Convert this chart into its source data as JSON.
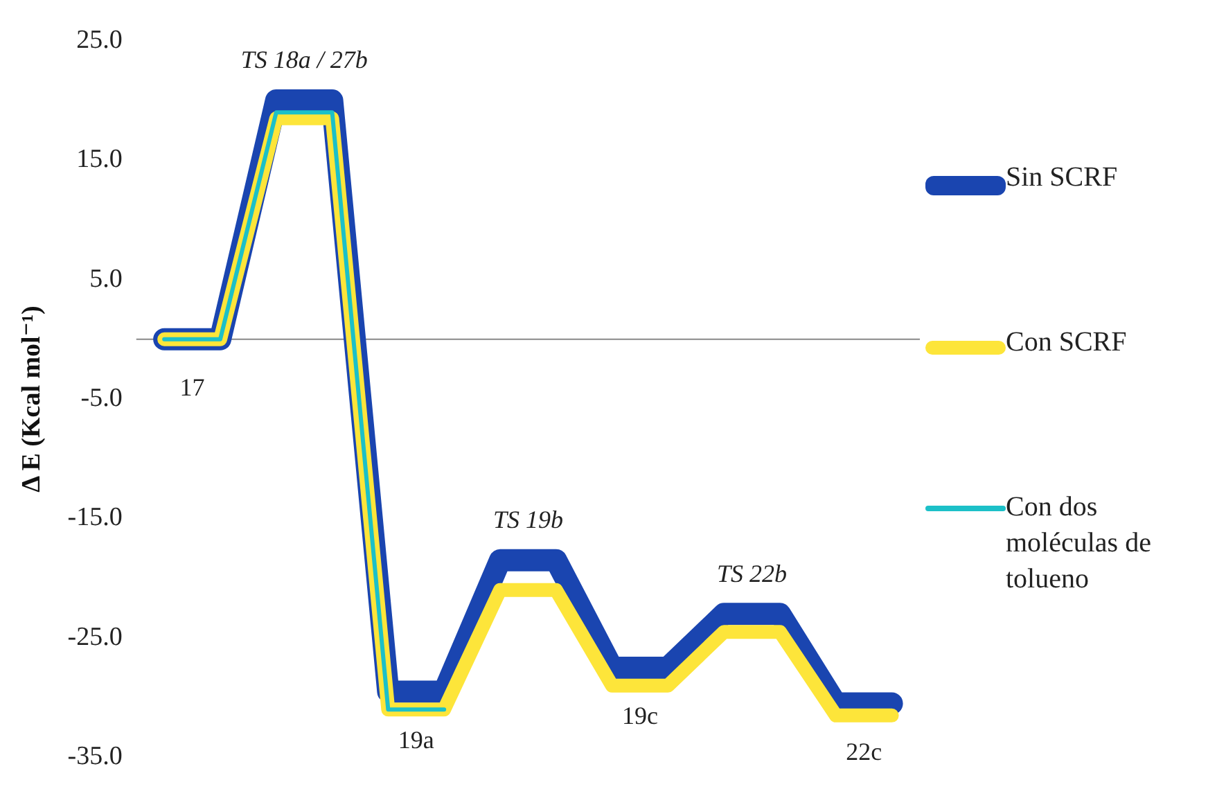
{
  "chart_data": {
    "type": "line",
    "ylabel": "Δ E (Kcal mol⁻¹)",
    "categories": [
      null,
      null,
      null,
      null,
      null,
      null,
      null,
      null,
      null,
      null,
      null,
      null,
      null,
      null
    ],
    "ylim": [
      -35,
      25
    ],
    "yticks": [
      {
        "value": 25,
        "label": "25.0"
      },
      {
        "value": 15,
        "label": "15.0"
      },
      {
        "value": 5,
        "label": "5.0"
      },
      {
        "value": -5,
        "label": "-5.0"
      },
      {
        "value": -15,
        "label": "-15.0"
      },
      {
        "value": -25,
        "label": "-25.0"
      },
      {
        "value": -35,
        "label": "-35.0"
      }
    ],
    "tick_labels": "y",
    "grid": false,
    "legend": "right",
    "marker": "none",
    "line_style": "solid",
    "series": [
      {
        "name": "Sin SCRF",
        "color": "#1a45b0",
        "values": [
          0,
          0,
          20,
          20,
          -29.5,
          -29.5,
          -18.5,
          -18.5,
          -27.5,
          -27.5,
          -23,
          -23,
          -30.5,
          -30.5
        ]
      },
      {
        "name": "Con SCRF",
        "color": "#fde53a",
        "values": [
          0,
          0,
          18.5,
          18.5,
          -31,
          -31,
          -21,
          -21,
          -29,
          -29,
          -24.5,
          -24.5,
          -31.5,
          -31.5
        ]
      },
      {
        "name": "Con dos moléculas de tolueno",
        "color": "#1cc0c8",
        "values": [
          0,
          0,
          19,
          19,
          -31,
          -31,
          null,
          null,
          null,
          null,
          null,
          null,
          null,
          null
        ]
      }
    ],
    "ref_lines": [
      {
        "axis": "y",
        "value": 0,
        "color": "#888888"
      }
    ],
    "annotations": [
      "17",
      "TS 18a / 27b",
      "19a",
      "TS 19b",
      "19c",
      "TS 22b",
      "22c"
    ]
  }
}
